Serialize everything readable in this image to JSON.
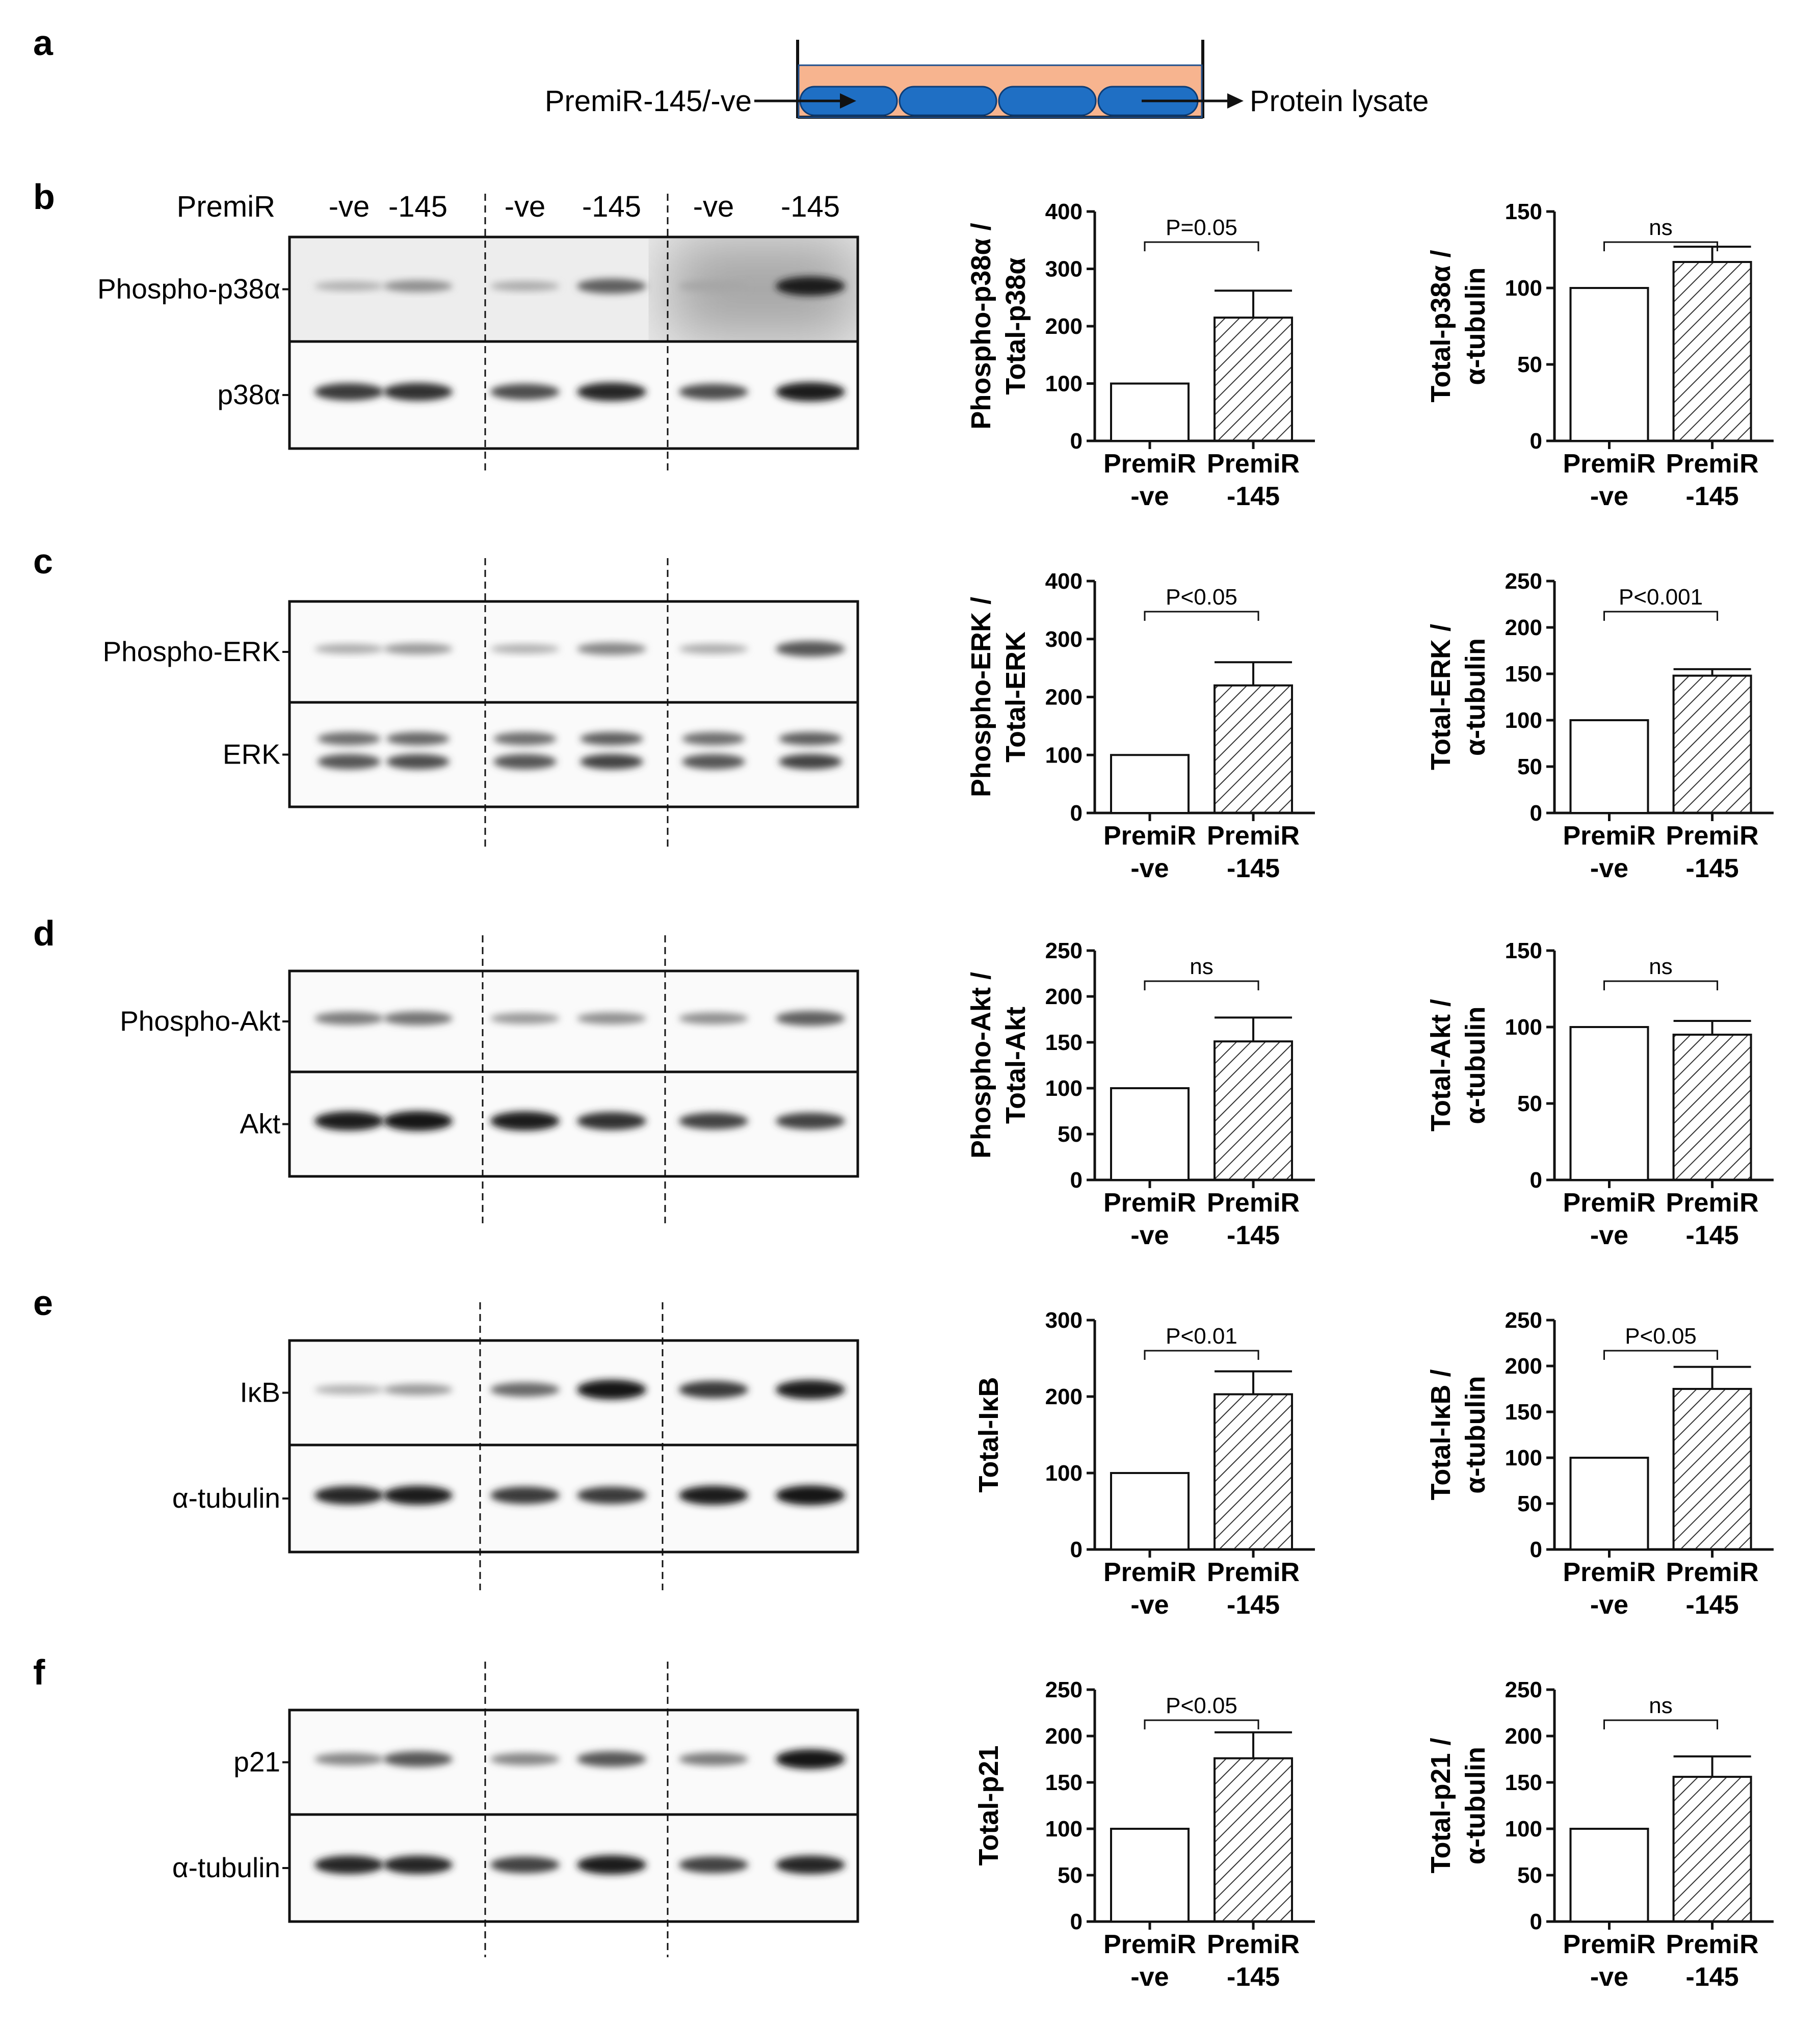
{
  "panel_a": {
    "label": "a",
    "left_text": "PremiR-145/-ve",
    "right_text": "Protein lysate"
  },
  "blots": {
    "header_label": "PremiR",
    "lanes": [
      "-ve",
      "-145",
      "-ve",
      "-145",
      "-ve",
      "-145"
    ],
    "panels": [
      {
        "label": "b",
        "rows": [
          "Phospho-p38α",
          "p38α"
        ]
      },
      {
        "label": "c",
        "rows": [
          "Phospho-ERK",
          "ERK"
        ]
      },
      {
        "label": "d",
        "rows": [
          "Phospho-Akt",
          "Akt"
        ]
      },
      {
        "label": "e",
        "rows": [
          "IκB",
          "α-tubulin"
        ]
      },
      {
        "label": "f",
        "rows": [
          "p21",
          "α-tubulin"
        ]
      }
    ]
  },
  "colors": {
    "bar_control": "#ffffff",
    "bar_treated_hatch": "#333333",
    "schematic_fill": "#f7b48f",
    "cell_fill": "#1f6fc4"
  },
  "chart_data": [
    {
      "type": "bar",
      "panel": "b",
      "ylabel": [
        "Phospho-p38α /",
        "Total-p38α"
      ],
      "ylim": [
        0,
        400
      ],
      "ticks": [
        0,
        100,
        200,
        300,
        400
      ],
      "categories": [
        [
          "PremiR",
          "-ve"
        ],
        [
          "PremiR",
          "-145"
        ]
      ],
      "values": [
        100,
        215
      ],
      "errors": [
        0,
        47
      ],
      "significance": "P=0.05"
    },
    {
      "type": "bar",
      "panel": "b",
      "ylabel": [
        "Total-p38α /",
        "α-tubulin"
      ],
      "ylim": [
        0,
        150
      ],
      "ticks": [
        0,
        50,
        100,
        150
      ],
      "categories": [
        [
          "PremiR",
          "-ve"
        ],
        [
          "PremiR",
          "-145"
        ]
      ],
      "values": [
        100,
        117
      ],
      "errors": [
        0,
        10
      ],
      "significance": "ns"
    },
    {
      "type": "bar",
      "panel": "c",
      "ylabel": [
        "Phospho-ERK /",
        "Total-ERK"
      ],
      "ylim": [
        0,
        400
      ],
      "ticks": [
        0,
        100,
        200,
        300,
        400
      ],
      "categories": [
        [
          "PremiR",
          "-ve"
        ],
        [
          "PremiR",
          "-145"
        ]
      ],
      "values": [
        100,
        220
      ],
      "errors": [
        0,
        40
      ],
      "significance": "P<0.05"
    },
    {
      "type": "bar",
      "panel": "c",
      "ylabel": [
        "Total-ERK /",
        "α-tubulin"
      ],
      "ylim": [
        0,
        250
      ],
      "ticks": [
        0,
        50,
        100,
        150,
        200,
        250
      ],
      "categories": [
        [
          "PremiR",
          "-ve"
        ],
        [
          "PremiR",
          "-145"
        ]
      ],
      "values": [
        100,
        148
      ],
      "errors": [
        0,
        7
      ],
      "significance": "P<0.001"
    },
    {
      "type": "bar",
      "panel": "d",
      "ylabel": [
        "Phospho-Akt /",
        "Total-Akt"
      ],
      "ylim": [
        0,
        250
      ],
      "ticks": [
        0,
        50,
        100,
        150,
        200,
        250
      ],
      "categories": [
        [
          "PremiR",
          "-ve"
        ],
        [
          "PremiR",
          "-145"
        ]
      ],
      "values": [
        100,
        151
      ],
      "errors": [
        0,
        26
      ],
      "significance": "ns"
    },
    {
      "type": "bar",
      "panel": "d",
      "ylabel": [
        "Total-Akt /",
        "α-tubulin"
      ],
      "ylim": [
        0,
        150
      ],
      "ticks": [
        0,
        50,
        100,
        150
      ],
      "categories": [
        [
          "PremiR",
          "-ve"
        ],
        [
          "PremiR",
          "-145"
        ]
      ],
      "values": [
        100,
        95
      ],
      "errors": [
        0,
        9
      ],
      "significance": "ns"
    },
    {
      "type": "bar",
      "panel": "e",
      "ylabel": [
        "Total-IκB"
      ],
      "ylim": [
        0,
        300
      ],
      "ticks": [
        0,
        100,
        200,
        300
      ],
      "categories": [
        [
          "PremiR",
          "-ve"
        ],
        [
          "PremiR",
          "-145"
        ]
      ],
      "values": [
        100,
        203
      ],
      "errors": [
        0,
        30
      ],
      "significance": "P<0.01"
    },
    {
      "type": "bar",
      "panel": "e",
      "ylabel": [
        "Total-IκB /",
        "α-tubulin"
      ],
      "ylim": [
        0,
        250
      ],
      "ticks": [
        0,
        50,
        100,
        150,
        200,
        250
      ],
      "categories": [
        [
          "PremiR",
          "-ve"
        ],
        [
          "PremiR",
          "-145"
        ]
      ],
      "values": [
        100,
        175
      ],
      "errors": [
        0,
        24
      ],
      "significance": "P<0.05"
    },
    {
      "type": "bar",
      "panel": "f",
      "ylabel": [
        "Total-p21"
      ],
      "ylim": [
        0,
        250
      ],
      "ticks": [
        0,
        50,
        100,
        150,
        200,
        250
      ],
      "categories": [
        [
          "PremiR",
          "-ve"
        ],
        [
          "PremiR",
          "-145"
        ]
      ],
      "values": [
        100,
        176
      ],
      "errors": [
        0,
        28
      ],
      "significance": "P<0.05"
    },
    {
      "type": "bar",
      "panel": "f",
      "ylabel": [
        "Total-p21 /",
        "α-tubulin"
      ],
      "ylim": [
        0,
        250
      ],
      "ticks": [
        0,
        50,
        100,
        150,
        200,
        250
      ],
      "categories": [
        [
          "PremiR",
          "-ve"
        ],
        [
          "PremiR",
          "-145"
        ]
      ],
      "values": [
        100,
        156
      ],
      "errors": [
        0,
        22
      ],
      "significance": "ns"
    }
  ]
}
